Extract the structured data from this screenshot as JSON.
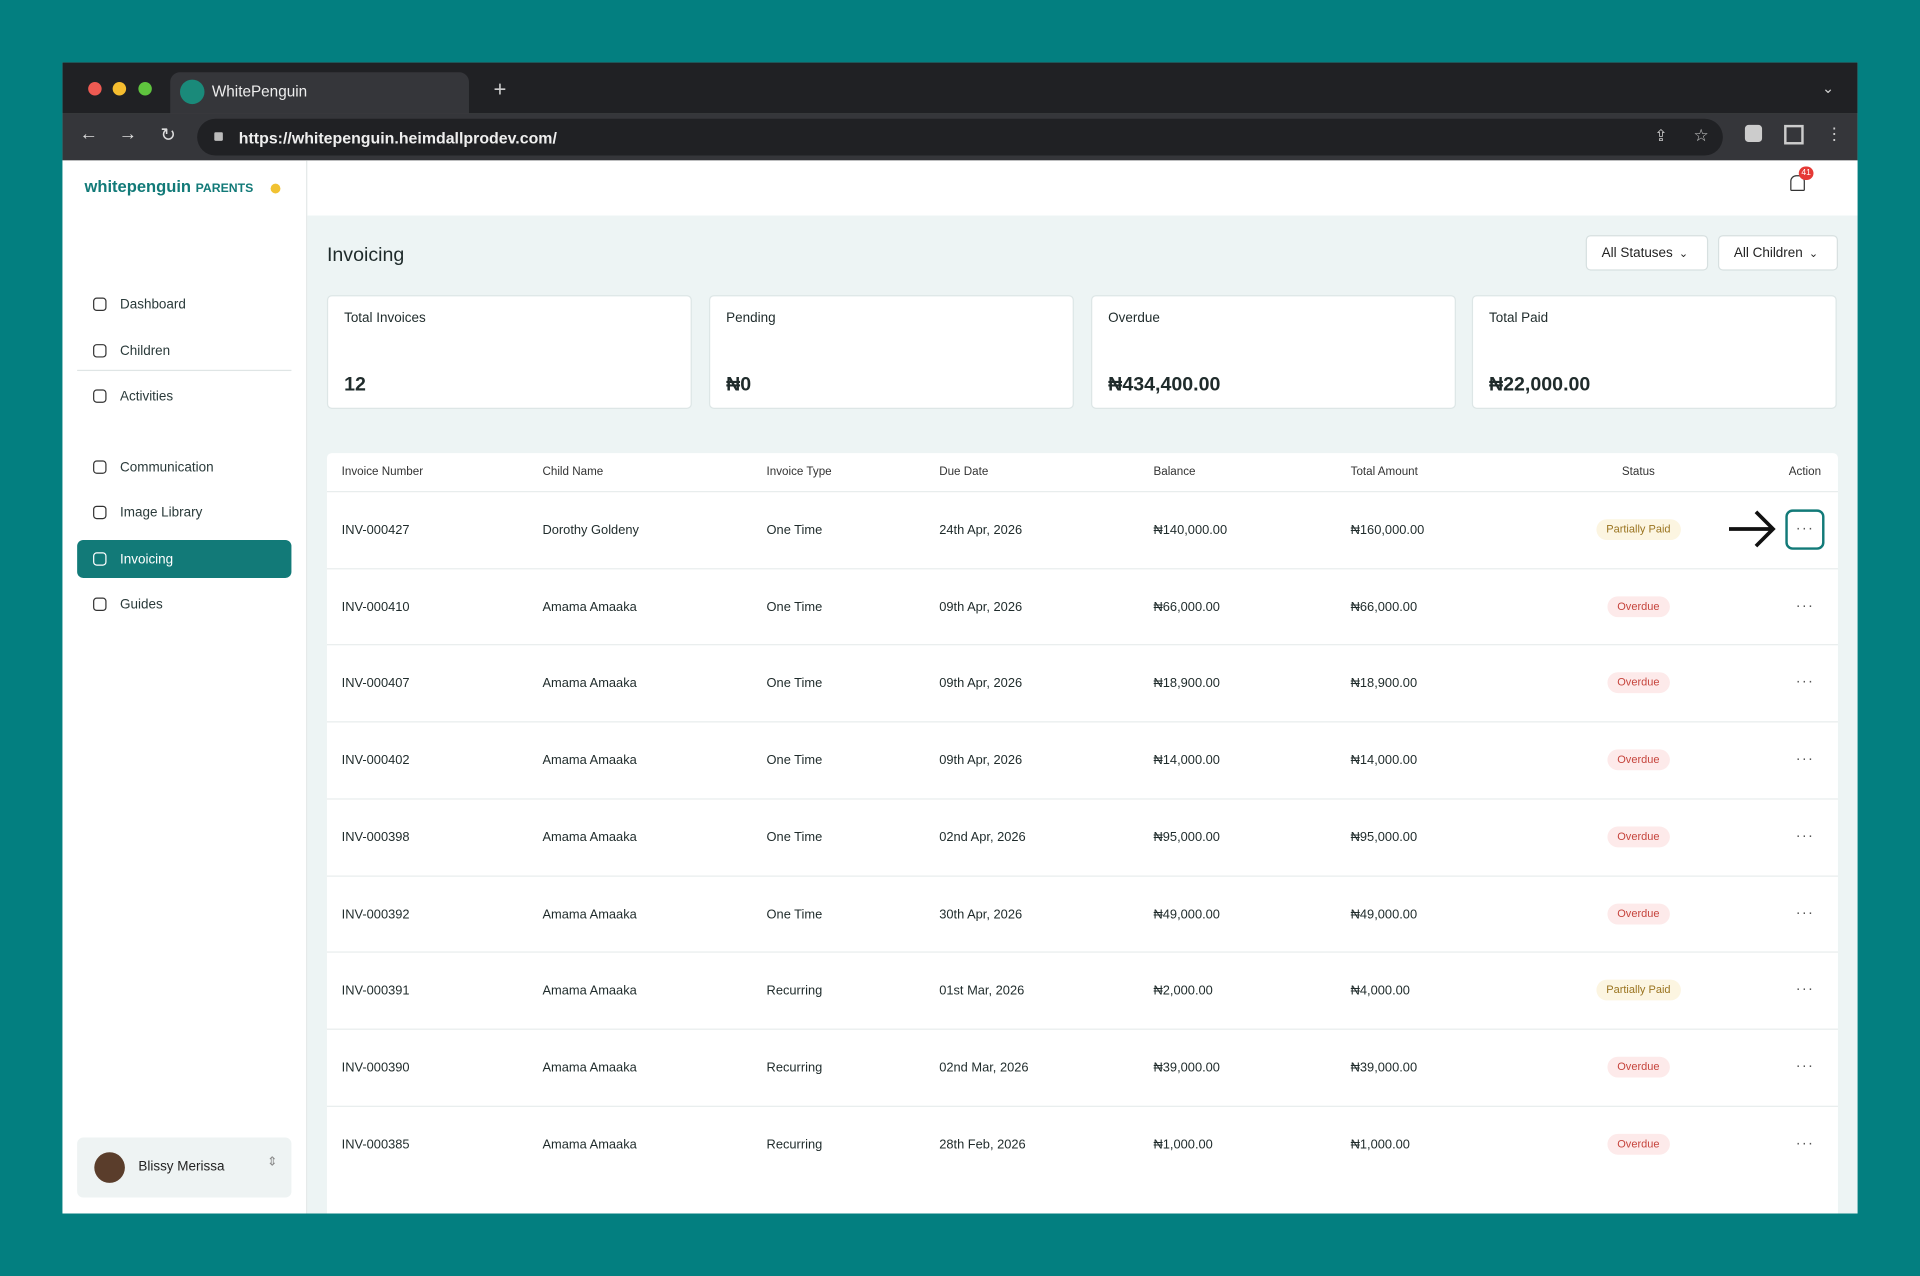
{
  "browser": {
    "tab_title": "WhitePenguin",
    "url": "https://whitepenguin.heimdallprodev.com/"
  },
  "brand": {
    "name": "whitepenguin",
    "suffix": "PARENTS"
  },
  "nav": {
    "items": [
      "Dashboard",
      "Children",
      "Activities",
      "Communication",
      "Image Library",
      "Invoicing",
      "Guides"
    ],
    "active": "Invoicing"
  },
  "user": {
    "name": "Blissy Merissa"
  },
  "notifications": {
    "count": "41"
  },
  "page": {
    "title": "Invoicing",
    "filters": [
      "All Statuses",
      "All Children"
    ]
  },
  "stats": [
    {
      "label": "Total Invoices",
      "value": "12"
    },
    {
      "label": "Pending",
      "value": "₦0"
    },
    {
      "label": "Overdue",
      "value": "₦434,400.00"
    },
    {
      "label": "Total Paid",
      "value": "₦22,000.00"
    }
  ],
  "table": {
    "columns": [
      "Invoice Number",
      "Child Name",
      "Invoice Type",
      "Due Date",
      "Balance",
      "Total Amount",
      "Status",
      "Action"
    ],
    "rows": [
      [
        "INV-000427",
        "Dorothy Goldeny",
        "One Time",
        "24th Apr, 2026",
        "₦140,000.00",
        "₦160,000.00",
        "Partially Paid"
      ],
      [
        "INV-000410",
        "Amama Amaaka",
        "One Time",
        "09th Apr, 2026",
        "₦66,000.00",
        "₦66,000.00",
        "Overdue"
      ],
      [
        "INV-000407",
        "Amama Amaaka",
        "One Time",
        "09th Apr, 2026",
        "₦18,900.00",
        "₦18,900.00",
        "Overdue"
      ],
      [
        "INV-000402",
        "Amama Amaaka",
        "One Time",
        "09th Apr, 2026",
        "₦14,000.00",
        "₦14,000.00",
        "Overdue"
      ],
      [
        "INV-000398",
        "Amama Amaaka",
        "One Time",
        "02nd Apr, 2026",
        "₦95,000.00",
        "₦95,000.00",
        "Overdue"
      ],
      [
        "INV-000392",
        "Amama Amaaka",
        "One Time",
        "30th Apr, 2026",
        "₦49,000.00",
        "₦49,000.00",
        "Overdue"
      ],
      [
        "INV-000391",
        "Amama Amaaka",
        "Recurring",
        "01st Mar, 2026",
        "₦2,000.00",
        "₦4,000.00",
        "Partially Paid"
      ],
      [
        "INV-000390",
        "Amama Amaaka",
        "Recurring",
        "02nd Mar, 2026",
        "₦39,000.00",
        "₦39,000.00",
        "Overdue"
      ],
      [
        "INV-000385",
        "Amama Amaaka",
        "Recurring",
        "28th Feb, 2026",
        "₦1,000.00",
        "₦1,000.00",
        "Overdue"
      ]
    ]
  }
}
